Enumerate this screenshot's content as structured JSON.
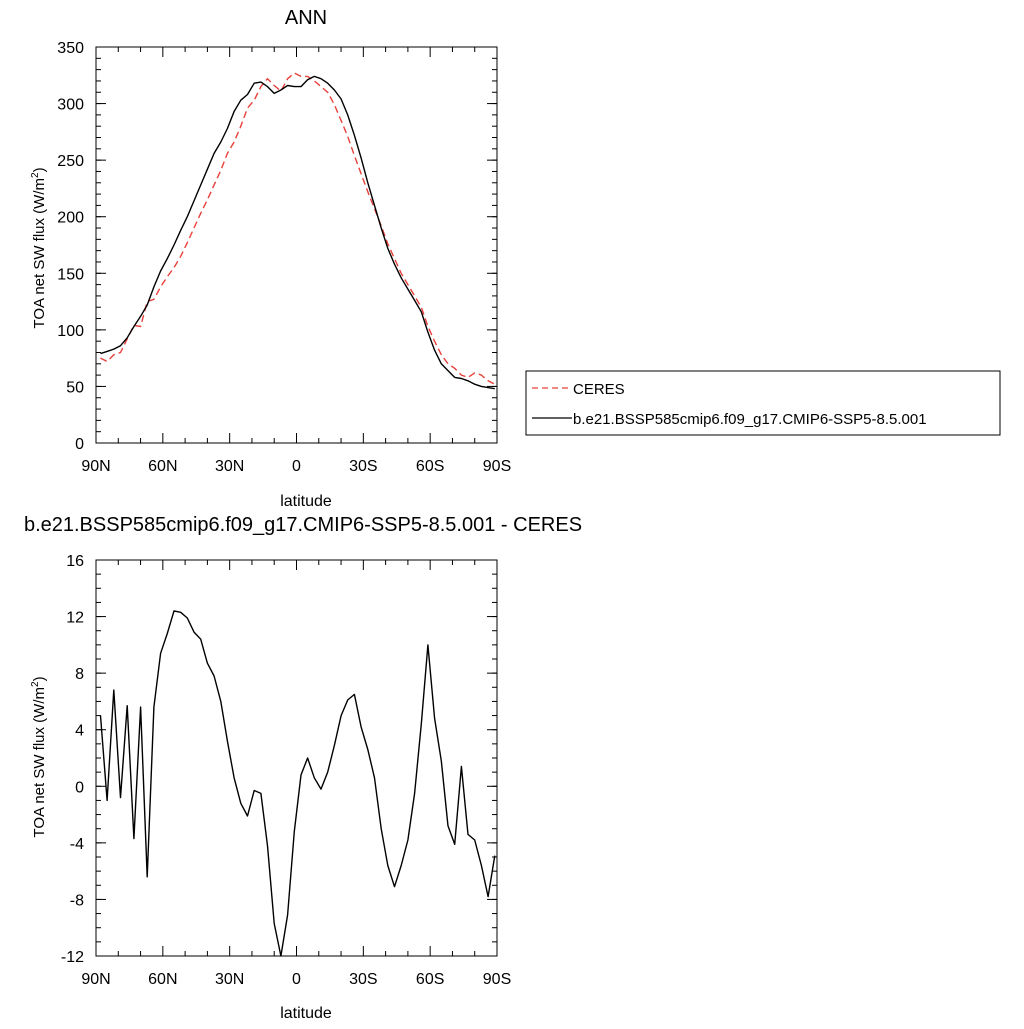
{
  "colors": {
    "ceres": "#e8403a",
    "model": "#000000",
    "axis": "#000000",
    "background": "#ffffff"
  },
  "top": {
    "title": "ANN",
    "ylabel": "TOA net SW flux (W/m",
    "ylabel_sup": "2",
    "ylabel_end": ")",
    "xlabel": "latitude",
    "xticks": [
      "90N",
      "60N",
      "30N",
      "0",
      "30S",
      "60S",
      "90S"
    ],
    "yticks": [
      "0",
      "50",
      "100",
      "150",
      "200",
      "250",
      "300",
      "350"
    ],
    "legend": {
      "ceres_label": "CERES",
      "model_label": "b.e21.BSSP585cmip6.f09_g17.CMIP6-SSP5-8.5.001"
    }
  },
  "bottom": {
    "title": "b.e21.BSSP585cmip6.f09_g17.CMIP6-SSP5-8.5.001 - CERES",
    "ylabel": "TOA net SW flux (W/m",
    "ylabel_sup": "2",
    "ylabel_end": ")",
    "xlabel": "latitude",
    "xticks": [
      "90N",
      "60N",
      "30N",
      "0",
      "30S",
      "60S",
      "90S"
    ],
    "yticks": [
      "-12",
      "-8",
      "-4",
      "0",
      "4",
      "8",
      "12",
      "16"
    ]
  },
  "chart_data": [
    {
      "type": "line",
      "title": "ANN",
      "xlabel": "latitude",
      "ylabel": "TOA net SW flux (W/m2)",
      "xlim": [
        90,
        -90
      ],
      "ylim": [
        0,
        350
      ],
      "legend_position": "right",
      "series": [
        {
          "name": "CERES",
          "color": "#e8403a",
          "dash": "dashed",
          "x": [
            88,
            85,
            82,
            79,
            76,
            73,
            70,
            67,
            64,
            61,
            58,
            55,
            52,
            49,
            46,
            43,
            40,
            37,
            34,
            31,
            28,
            25,
            22,
            19,
            16,
            13,
            10,
            7,
            4,
            1,
            -2,
            -5,
            -8,
            -11,
            -14,
            -17,
            -20,
            -23,
            -26,
            -29,
            -32,
            -35,
            -38,
            -41,
            -44,
            -47,
            -50,
            -53,
            -56,
            -59,
            -62,
            -65,
            -68,
            -71,
            -74,
            -77,
            -80,
            -83,
            -86,
            -89
          ],
          "y": [
            75,
            72,
            78,
            80,
            92,
            104,
            103,
            125,
            127,
            138,
            147,
            155,
            165,
            177,
            190,
            203,
            215,
            228,
            241,
            256,
            266,
            280,
            296,
            303,
            315,
            322,
            316,
            311,
            322,
            327,
            324,
            324,
            320,
            315,
            310,
            299,
            285,
            271,
            254,
            238,
            222,
            207,
            192,
            176,
            163,
            150,
            140,
            130,
            120,
            103,
            90,
            78,
            70,
            66,
            60,
            58,
            62,
            60,
            55,
            52
          ]
        },
        {
          "name": "b.e21.BSSP585cmip6.f09_g17.CMIP6-SSP5-8.5.001",
          "color": "#000000",
          "dash": "solid",
          "x": [
            88,
            85,
            82,
            79,
            76,
            73,
            70,
            67,
            64,
            61,
            58,
            55,
            52,
            49,
            46,
            43,
            40,
            37,
            34,
            31,
            28,
            25,
            22,
            19,
            16,
            13,
            10,
            7,
            4,
            1,
            -2,
            -5,
            -8,
            -11,
            -14,
            -17,
            -20,
            -23,
            -26,
            -29,
            -32,
            -35,
            -38,
            -41,
            -44,
            -47,
            -50,
            -53,
            -56,
            -59,
            -62,
            -65,
            -68,
            -71,
            -74,
            -77,
            -80,
            -83,
            -86,
            -89
          ],
          "y": [
            79,
            81,
            83,
            86,
            93,
            103,
            112,
            122,
            138,
            152,
            163,
            175,
            188,
            200,
            214,
            228,
            242,
            256,
            266,
            278,
            293,
            303,
            308,
            318,
            319,
            315,
            309,
            312,
            316,
            315,
            315,
            321,
            324,
            322,
            318,
            312,
            304,
            290,
            272,
            252,
            230,
            210,
            190,
            172,
            158,
            146,
            136,
            126,
            116,
            98,
            82,
            70,
            64,
            58,
            57,
            55,
            52,
            50,
            49,
            48
          ]
        }
      ]
    },
    {
      "type": "line",
      "title": "b.e21.BSSP585cmip6.f09_g17.CMIP6-SSP5-8.5.001 - CERES",
      "xlabel": "latitude",
      "ylabel": "TOA net SW flux (W/m2)",
      "xlim": [
        90,
        -90
      ],
      "ylim": [
        -12,
        16
      ],
      "series": [
        {
          "name": "b.e21.BSSP585cmip6.f09_g17.CMIP6-SSP5-8.5.001 - CERES",
          "color": "#000000",
          "dash": "solid",
          "x": [
            88,
            85,
            82,
            79,
            76,
            73,
            70,
            67,
            64,
            61,
            58,
            55,
            52,
            49,
            46,
            43,
            40,
            37,
            34,
            31,
            28,
            25,
            22,
            19,
            16,
            13,
            10,
            7,
            4,
            1,
            -2,
            -5,
            -8,
            -11,
            -14,
            -17,
            -20,
            -23,
            -26,
            -29,
            -32,
            -35,
            -38,
            -41,
            -44,
            -47,
            -50,
            -53,
            -56,
            -59,
            -62,
            -65,
            -68,
            -71,
            -74,
            -77,
            -80,
            -83,
            -86,
            -89
          ],
          "y": [
            5,
            -1,
            6.8,
            -0.8,
            5.7,
            -3.7,
            5.6,
            -6.4,
            5.6,
            9.4,
            10.8,
            12.4,
            12.3,
            11.9,
            10.9,
            10.4,
            8.7,
            7.8,
            6,
            3.2,
            0.6,
            -1.2,
            -2.1,
            -0.3,
            -0.5,
            -4.2,
            -9.7,
            -12,
            -9.1,
            -3.2,
            0.8,
            2,
            0.6,
            -0.2,
            1,
            2.9,
            5,
            6.1,
            6.5,
            4.2,
            2.6,
            0.6,
            -3,
            -5.6,
            -7.1,
            -5.6,
            -3.8,
            -0.5,
            4.4,
            10,
            4.8,
            1.8,
            -2.8,
            -4.1,
            1.4,
            -3.4,
            -3.8,
            -5.6,
            -7.8,
            -4.9
          ]
        }
      ]
    }
  ]
}
